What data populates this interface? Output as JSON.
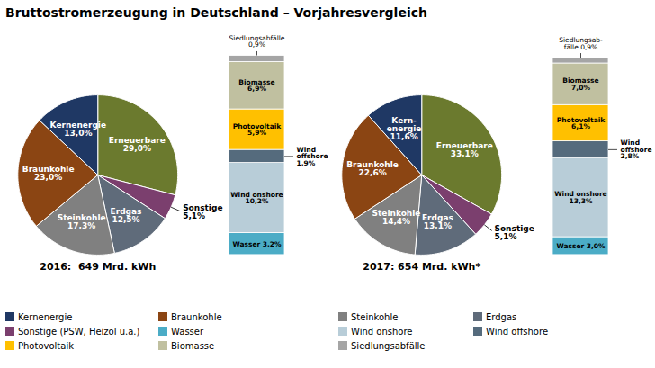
{
  "title": "Bruttostromerzeugung in Deutschland – Vorjahresvergleich",
  "legend_entries": [
    {
      "name": "Kernenergie",
      "color": "#1f3864"
    },
    {
      "name": "Braunkohle",
      "color": "#8b4513"
    },
    {
      "name": "Steinkohle",
      "color": "#808080"
    },
    {
      "name": "Erdgas",
      "color": "#5f6b7a"
    },
    {
      "name": "Sonstige (PSW, Heizöl u.a.)",
      "color": "#7b3f6e"
    },
    {
      "name": "Wasser",
      "color": "#4bacc6"
    },
    {
      "name": "Wind onshore",
      "color": "#b8cdd8"
    },
    {
      "name": "Wind offshore",
      "color": "#556b7d"
    },
    {
      "name": "Photovoltaik",
      "color": "#ffc000"
    },
    {
      "name": "Biomasse",
      "color": "#c0c0a0"
    },
    {
      "name": "Siedlungsabfälle",
      "color": "#a5a5a5"
    }
  ],
  "chart_data": [
    {
      "type": "pie",
      "title": "2016:  649 Mrd. kWh",
      "categories": [
        "Erneuerbare",
        "Sonstige",
        "Erdgas",
        "Steinkohle",
        "Braunkohle",
        "Kernenergie"
      ],
      "values": [
        29.0,
        5.1,
        12.5,
        17.3,
        23.0,
        13.0
      ],
      "value_labels": [
        "29,0%",
        "5,1%",
        "12,5%",
        "17,3%",
        "23,0%",
        "13,0%"
      ],
      "colors": [
        "#6b7a2e",
        "#7b3f6e",
        "#5f6b7a",
        "#808080",
        "#8b4513",
        "#1f3864"
      ],
      "data_labels": true
    },
    {
      "type": "bar",
      "stacked": true,
      "data_labels": true,
      "tick_labels": false,
      "categories": [
        null
      ],
      "ylim": [
        0,
        33.0
      ],
      "series": [
        {
          "name": "Wasser",
          "color": "#4bacc6",
          "values": [
            3.2
          ],
          "value_labels": [
            "Wasser 3,2%"
          ]
        },
        {
          "name": "Wind onshore",
          "color": "#b8cdd8",
          "values": [
            10.2
          ],
          "value_labels": [
            "Wind onshore\n10,2%"
          ]
        },
        {
          "name": "Wind offshore",
          "color": "#556b7d",
          "values": [
            1.9
          ],
          "value_labels": [
            "Wind\noffshore\n1,9%"
          ]
        },
        {
          "name": "Photovoltaik",
          "color": "#ffc000",
          "values": [
            5.9
          ],
          "value_labels": [
            "Photovoltaik\n5,9%"
          ]
        },
        {
          "name": "Biomasse",
          "color": "#c0c0a0",
          "values": [
            6.9
          ],
          "value_labels": [
            "Biomasse\n6,9%"
          ]
        },
        {
          "name": "Siedlungsabfälle",
          "color": "#a5a5a5",
          "values": [
            0.9
          ],
          "value_labels": [
            "Siedlungsabfälle\n0,9%"
          ]
        }
      ]
    },
    {
      "type": "pie",
      "title": "2017: 654 Mrd. kWh*",
      "categories": [
        "Erneuerbare",
        "Sonstige",
        "Erdgas",
        "Steinkohle",
        "Braunkohle",
        "Kern-\nenergie"
      ],
      "values": [
        33.1,
        5.1,
        13.1,
        14.4,
        22.6,
        11.6
      ],
      "value_labels": [
        "33,1%",
        "5,1%",
        "13,1%",
        "14,4%",
        "22,6%",
        "11,6%"
      ],
      "colors": [
        "#6b7a2e",
        "#7b3f6e",
        "#5f6b7a",
        "#808080",
        "#8b4513",
        "#1f3864"
      ],
      "data_labels": true
    },
    {
      "type": "bar",
      "stacked": true,
      "data_labels": true,
      "tick_labels": false,
      "categories": [
        null
      ],
      "ylim": [
        0,
        38.1
      ],
      "series": [
        {
          "name": "Wasser",
          "color": "#4bacc6",
          "values": [
            3.0
          ],
          "value_labels": [
            "Wasser 3,0%"
          ]
        },
        {
          "name": "Wind onshore",
          "color": "#b8cdd8",
          "values": [
            13.3
          ],
          "value_labels": [
            "Wind onshore\n13,3%"
          ]
        },
        {
          "name": "Wind offshore",
          "color": "#556b7d",
          "values": [
            2.8
          ],
          "value_labels": [
            "Wind\noffshore\n2,8%"
          ]
        },
        {
          "name": "Photovoltaik",
          "color": "#ffc000",
          "values": [
            6.1
          ],
          "value_labels": [
            "Photovoltaik\n6,1%"
          ]
        },
        {
          "name": "Biomasse",
          "color": "#c0c0a0",
          "values": [
            7.0
          ],
          "value_labels": [
            "Biomasse\n7,0%"
          ]
        },
        {
          "name": "Siedlungsabfälle",
          "color": "#a5a5a5",
          "values": [
            0.9
          ],
          "value_labels": [
            "Siedlungsab-\nfälle 0,9%"
          ]
        }
      ]
    }
  ]
}
